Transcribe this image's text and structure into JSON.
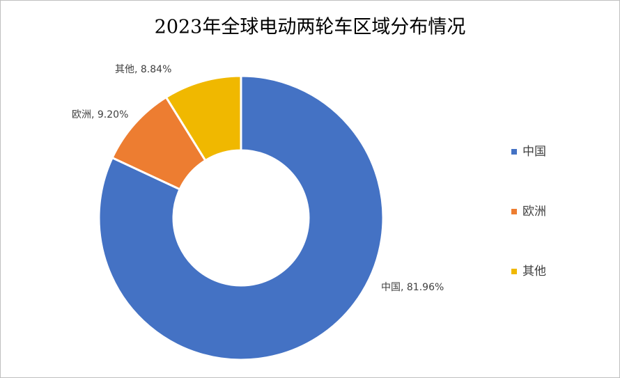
{
  "chart_data": {
    "type": "doughnut",
    "title": "2023年全球电动两轮车区域分布情况",
    "categories": [
      "中国",
      "欧洲",
      "其他"
    ],
    "values": [
      81.96,
      9.2,
      8.84
    ],
    "value_labels": [
      "中国, 81.96%",
      "欧洲, 9.20%",
      "其他, 8.84%"
    ],
    "colors": [
      "#4472c4",
      "#ed7d31",
      "#f0b800"
    ],
    "legend": "right"
  }
}
